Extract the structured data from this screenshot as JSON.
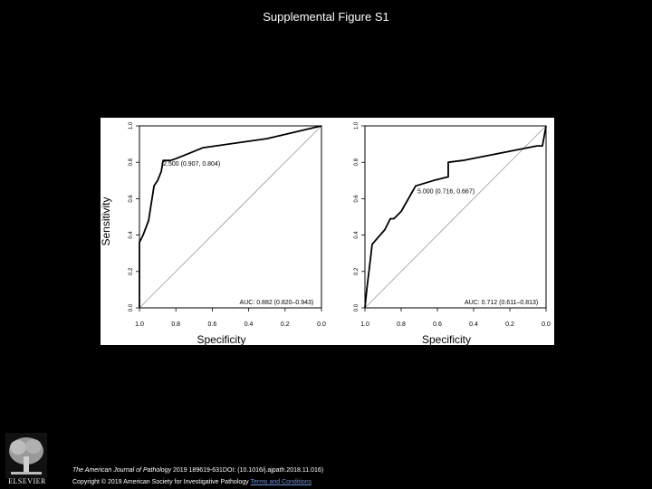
{
  "slide": {
    "title": "Supplemental Figure S1"
  },
  "chart_data": [
    {
      "type": "line",
      "xlabel": "Specificity",
      "ylabel": "Sensitivity",
      "xlim": [
        1.0,
        0.0
      ],
      "ylim": [
        0.0,
        1.0
      ],
      "xticks": [
        "1.0",
        "0.8",
        "0.6",
        "0.4",
        "0.2",
        "0.0"
      ],
      "yticks": [
        "0.0",
        "0.2",
        "0.4",
        "0.6",
        "0.8",
        "1.0"
      ],
      "reference_line": [
        [
          1.0,
          0.0
        ],
        [
          0.0,
          1.0
        ]
      ],
      "series": [
        {
          "x": [
            1.0,
            1.0,
            0.98,
            0.95,
            0.92,
            0.9,
            0.88,
            0.87,
            0.83,
            0.8,
            0.75,
            0.65,
            0.3,
            0.0
          ],
          "y": [
            0.0,
            0.36,
            0.4,
            0.48,
            0.67,
            0.7,
            0.75,
            0.81,
            0.81,
            0.82,
            0.84,
            0.88,
            0.93,
            1.0
          ]
        }
      ],
      "annotations": [
        {
          "text": "2.500 (0.907, 0.804)",
          "x": 0.87,
          "y": 0.78
        },
        {
          "text": "AUC: 0.882 (0.820–0.943)",
          "x": 0.45,
          "y": 0.02
        }
      ]
    },
    {
      "type": "line",
      "xlabel": "Specificity",
      "ylabel": "",
      "xlim": [
        1.0,
        0.0
      ],
      "ylim": [
        0.0,
        1.0
      ],
      "xticks": [
        "1.0",
        "0.8",
        "0.6",
        "0.4",
        "0.2",
        "0.0"
      ],
      "yticks": [
        "0.0",
        "0.2",
        "0.4",
        "0.6",
        "0.8",
        "1.0"
      ],
      "reference_line": [
        [
          1.0,
          0.0
        ],
        [
          0.0,
          1.0
        ]
      ],
      "series": [
        {
          "x": [
            1.0,
            0.99,
            0.96,
            0.89,
            0.86,
            0.84,
            0.8,
            0.72,
            0.62,
            0.54,
            0.54,
            0.46,
            0.05,
            0.02,
            0.0
          ],
          "y": [
            0.0,
            0.1,
            0.35,
            0.43,
            0.49,
            0.49,
            0.53,
            0.67,
            0.7,
            0.72,
            0.8,
            0.81,
            0.89,
            0.89,
            1.0
          ]
        }
      ],
      "annotations": [
        {
          "text": "5.000 (0.716, 0.667)",
          "x": 0.71,
          "y": 0.63
        },
        {
          "text": "AUC: 0.712 (0.611–0.813)",
          "x": 0.45,
          "y": 0.02
        }
      ]
    }
  ],
  "footer": {
    "journal": "The American Journal of Pathology",
    "citation_rest": " 2019 189619-631DOI: (10.1016/j.ajpath.2018.11.016)",
    "copyright": "Copyright © 2019 American Society for Investigative Pathology ",
    "terms": "Terms and Conditions",
    "publisher": "ELSEVIER"
  }
}
